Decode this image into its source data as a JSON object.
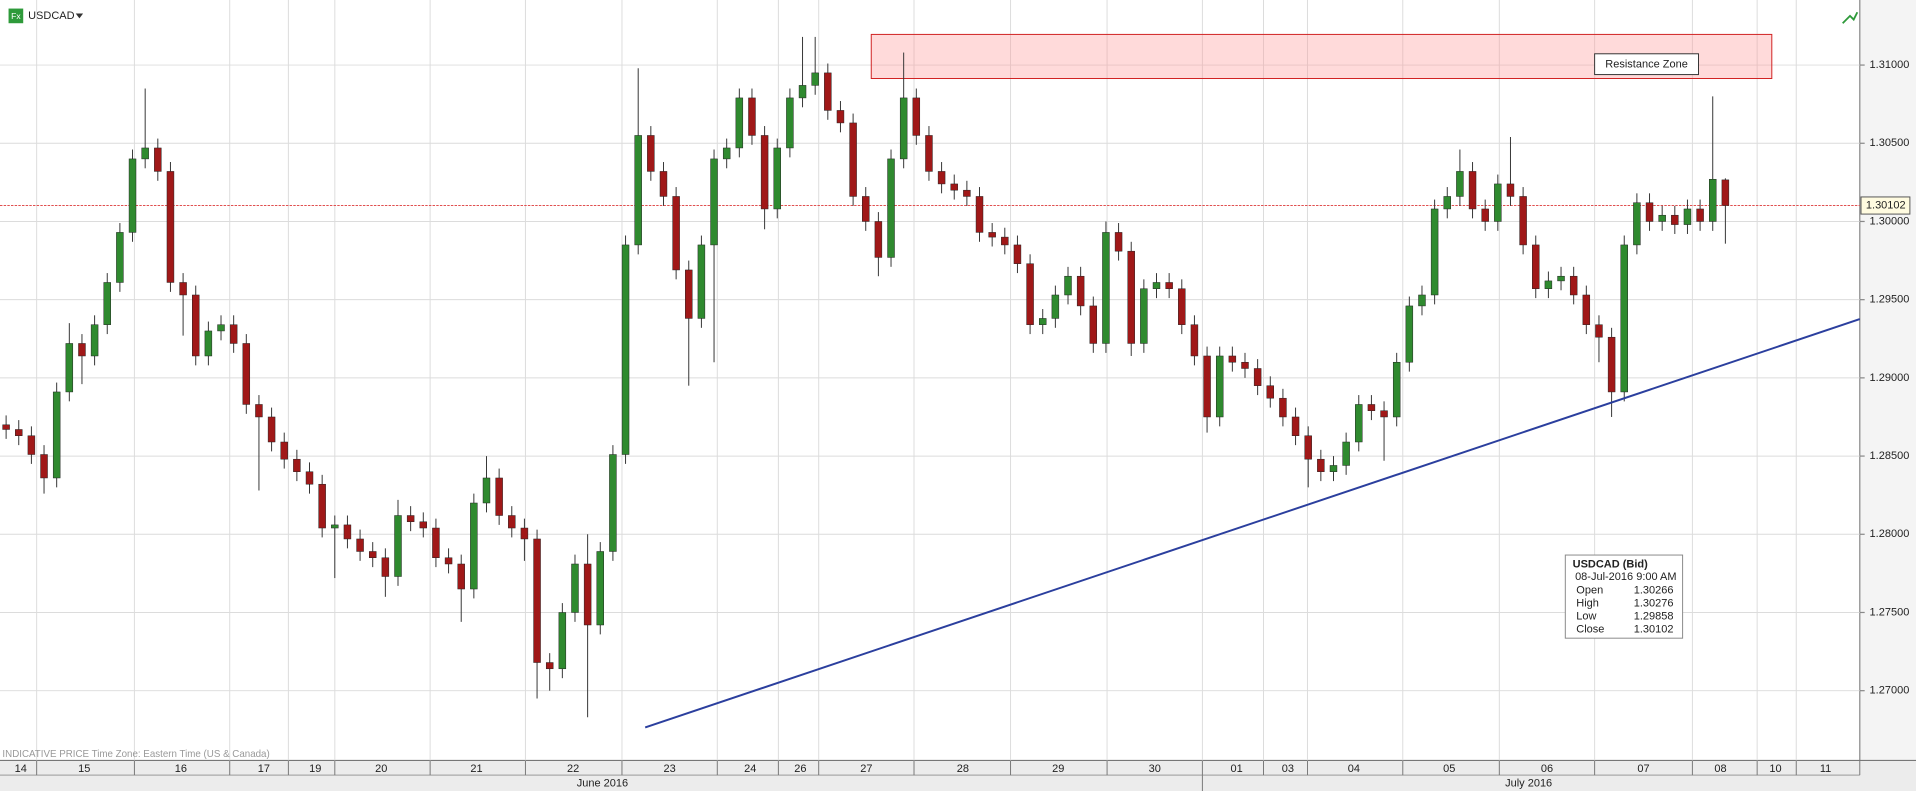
{
  "chart_data": {
    "type": "candlestick",
    "symbol": "USDCAD",
    "icon": "Fx",
    "footer_note": "INDICATIVE PRICE   Time Zone: Eastern Time (US & Canada)",
    "up_color": "#2f8a2f",
    "down_color": "#a01818",
    "grid": true,
    "ylim": [
      1.26554,
      1.31416
    ],
    "yticks": [
      {
        "value": 1.27,
        "label": "1.27000"
      },
      {
        "value": 1.275,
        "label": "1.27500"
      },
      {
        "value": 1.28,
        "label": "1.28000"
      },
      {
        "value": 1.285,
        "label": "1.28500"
      },
      {
        "value": 1.29,
        "label": "1.29000"
      },
      {
        "value": 1.295,
        "label": "1.29500"
      },
      {
        "value": 1.3,
        "label": "1.30000"
      },
      {
        "value": 1.305,
        "label": "1.30500"
      },
      {
        "value": 1.31,
        "label": "1.31000"
      }
    ],
    "x_labels": [
      "14",
      "15",
      "16",
      "17",
      "19",
      "20",
      "21",
      "22",
      "23",
      "24",
      "26",
      "27",
      "28",
      "29",
      "30",
      "01",
      "03",
      "04",
      "05",
      "06",
      "07",
      "08",
      "10",
      "11"
    ],
    "months": [
      "June 2016",
      "July 2016"
    ],
    "last_price": 1.30102,
    "trendline": {
      "start": 1.26765,
      "end": 1.29376,
      "color": "#2b3f9e"
    },
    "zone": {
      "label": "Resistance Zone",
      "low": 1.30914,
      "high": 1.31196
    },
    "info": {
      "title": "USDCAD (Bid)",
      "time": "08-Jul-2016 9:00 AM",
      "fields": [
        {
          "name": "Open",
          "value": 1.30266
        },
        {
          "name": "High",
          "value": 1.30276
        },
        {
          "name": "Low",
          "value": 1.29858
        },
        {
          "name": "Close",
          "value": 1.30102
        }
      ]
    },
    "open": [
      1.287,
      1.2867,
      1.2863,
      1.2851,
      1.2836,
      1.2891,
      1.2922,
      1.2914,
      1.2934,
      1.2961,
      1.2993,
      1.304,
      1.3047,
      1.3032,
      1.2961,
      1.2953,
      1.2914,
      1.293,
      1.2934,
      1.2922,
      1.2883,
      1.2875,
      1.2859,
      1.2848,
      1.284,
      1.2832,
      1.2804,
      1.2806,
      1.2797,
      1.2789,
      1.2785,
      1.2773,
      1.2812,
      1.2808,
      1.2804,
      1.2785,
      1.2781,
      1.2765,
      1.282,
      1.2836,
      1.2812,
      1.2804,
      1.2797,
      1.2718,
      1.2714,
      1.275,
      1.2781,
      1.2742,
      1.2789,
      1.2851,
      1.2985,
      1.3055,
      1.3032,
      1.3016,
      1.2969,
      1.2938,
      1.2985,
      1.304,
      1.3047,
      1.3079,
      1.3055,
      1.3008,
      1.3047,
      1.3079,
      1.3087,
      1.3095,
      1.3071,
      1.3063,
      1.3016,
      1.3,
      1.2977,
      1.304,
      1.3079,
      1.3055,
      1.3032,
      1.3024,
      1.302,
      1.3016,
      1.2993,
      1.299,
      1.2985,
      1.2973,
      1.2934,
      1.2938,
      1.2953,
      1.2965,
      1.2946,
      1.2922,
      1.2993,
      1.2981,
      1.2922,
      1.2957,
      1.2961,
      1.2957,
      1.2934,
      1.2914,
      1.2875,
      1.2914,
      1.291,
      1.2906,
      1.2895,
      1.2887,
      1.2875,
      1.2863,
      1.2848,
      1.284,
      1.2844,
      1.2859,
      1.2883,
      1.2879,
      1.2875,
      1.291,
      1.2946,
      1.2953,
      1.3008,
      1.3016,
      1.3032,
      1.3008,
      1.3,
      1.3024,
      1.3016,
      1.2985,
      1.2957,
      1.2962,
      1.2965,
      1.2953,
      1.2934,
      1.2926,
      1.2891,
      1.2985,
      1.3012,
      1.3,
      1.3004,
      1.2998,
      1.3008,
      1.3,
      1.30266
    ],
    "high": [
      1.2876,
      1.2873,
      1.2869,
      1.2857,
      1.2897,
      1.2935,
      1.2928,
      1.294,
      1.2967,
      1.2999,
      1.3046,
      1.3085,
      1.3053,
      1.3038,
      1.2967,
      1.2959,
      1.2936,
      1.294,
      1.294,
      1.2928,
      1.2889,
      1.2881,
      1.2865,
      1.2854,
      1.2846,
      1.2838,
      1.2812,
      1.2812,
      1.2803,
      1.2795,
      1.2791,
      1.2822,
      1.2818,
      1.2814,
      1.281,
      1.2791,
      1.2787,
      1.2826,
      1.285,
      1.2842,
      1.2818,
      1.281,
      1.2803,
      1.2724,
      1.2756,
      1.2787,
      1.28,
      1.2795,
      1.2857,
      1.2991,
      1.3098,
      1.3061,
      1.3038,
      1.3022,
      1.2975,
      1.2991,
      1.3046,
      1.3053,
      1.3085,
      1.3085,
      1.3061,
      1.3053,
      1.3085,
      1.3118,
      1.3118,
      1.3101,
      1.3077,
      1.3069,
      1.3022,
      1.3006,
      1.3046,
      1.3108,
      1.3085,
      1.3061,
      1.3038,
      1.303,
      1.3026,
      1.3022,
      1.2999,
      1.2996,
      1.2991,
      1.2979,
      1.2944,
      1.2959,
      1.2971,
      1.2971,
      1.2952,
      1.3,
      1.2999,
      1.2987,
      1.2963,
      1.2967,
      1.2967,
      1.2963,
      1.294,
      1.292,
      1.292,
      1.292,
      1.2916,
      1.2912,
      1.2901,
      1.2893,
      1.2881,
      1.2869,
      1.2854,
      1.285,
      1.2865,
      1.2889,
      1.2889,
      1.2885,
      1.2916,
      1.2952,
      1.2959,
      1.3014,
      1.3022,
      1.3046,
      1.3038,
      1.3014,
      1.303,
      1.3054,
      1.3022,
      1.2991,
      1.2968,
      1.2971,
      1.2971,
      1.2959,
      1.294,
      1.2932,
      1.2991,
      1.3018,
      1.3018,
      1.301,
      1.301,
      1.3014,
      1.3014,
      1.308,
      1.30276
    ],
    "low": [
      1.2861,
      1.2857,
      1.2845,
      1.2826,
      1.283,
      1.2885,
      1.2896,
      1.2908,
      1.2928,
      1.2955,
      1.2987,
      1.3034,
      1.3026,
      1.2955,
      1.2927,
      1.2908,
      1.2908,
      1.2924,
      1.2916,
      1.2877,
      1.2828,
      1.2853,
      1.2842,
      1.2834,
      1.2826,
      1.2798,
      1.2772,
      1.2791,
      1.2783,
      1.2779,
      1.276,
      1.2767,
      1.2802,
      1.2798,
      1.2779,
      1.2775,
      1.2744,
      1.2759,
      1.2814,
      1.2806,
      1.2798,
      1.2783,
      1.2695,
      1.27,
      1.2708,
      1.2744,
      1.2683,
      1.2736,
      1.2783,
      1.2845,
      1.2979,
      1.3026,
      1.301,
      1.2963,
      1.2895,
      1.2932,
      1.291,
      1.3034,
      1.3041,
      1.3049,
      1.2995,
      1.3002,
      1.3041,
      1.3073,
      1.3081,
      1.3065,
      1.3057,
      1.301,
      1.2994,
      1.2965,
      1.2971,
      1.3034,
      1.3049,
      1.3026,
      1.3018,
      1.3014,
      1.301,
      1.2987,
      1.2984,
      1.2979,
      1.2967,
      1.2928,
      1.2928,
      1.2932,
      1.2947,
      1.294,
      1.2916,
      1.2916,
      1.2975,
      1.2914,
      1.2916,
      1.2951,
      1.2951,
      1.2928,
      1.2908,
      1.2865,
      1.2869,
      1.2904,
      1.29,
      1.2889,
      1.2881,
      1.2869,
      1.2857,
      1.283,
      1.2834,
      1.2834,
      1.2838,
      1.2853,
      1.2873,
      1.2847,
      1.2869,
      1.2904,
      1.294,
      1.2947,
      1.3002,
      1.301,
      1.3002,
      1.2994,
      1.2994,
      1.301,
      1.2979,
      1.2951,
      1.2951,
      1.2956,
      1.2947,
      1.2928,
      1.291,
      1.2875,
      1.2885,
      1.2979,
      1.2994,
      1.2994,
      1.2992,
      1.2992,
      1.2994,
      1.2994,
      1.29858
    ],
    "close": [
      1.2867,
      1.2863,
      1.2851,
      1.2836,
      1.2891,
      1.2922,
      1.2914,
      1.2934,
      1.2961,
      1.2993,
      1.304,
      1.3047,
      1.3032,
      1.2961,
      1.2953,
      1.2914,
      1.293,
      1.2934,
      1.2922,
      1.2883,
      1.2875,
      1.2859,
      1.2848,
      1.284,
      1.2832,
      1.2804,
      1.2806,
      1.2797,
      1.2789,
      1.2785,
      1.2773,
      1.2812,
      1.2808,
      1.2804,
      1.2785,
      1.2781,
      1.2765,
      1.282,
      1.2836,
      1.2812,
      1.2804,
      1.2797,
      1.2718,
      1.2714,
      1.275,
      1.2781,
      1.2742,
      1.2789,
      1.2851,
      1.2985,
      1.3055,
      1.3032,
      1.3016,
      1.2969,
      1.2938,
      1.2985,
      1.304,
      1.3047,
      1.3079,
      1.3055,
      1.3008,
      1.3047,
      1.3079,
      1.3087,
      1.3095,
      1.3071,
      1.3063,
      1.3016,
      1.3,
      1.2977,
      1.304,
      1.3079,
      1.3055,
      1.3032,
      1.3024,
      1.302,
      1.3016,
      1.2993,
      1.299,
      1.2985,
      1.2973,
      1.2934,
      1.2938,
      1.2953,
      1.2965,
      1.2946,
      1.2922,
      1.2993,
      1.2981,
      1.2922,
      1.2957,
      1.2961,
      1.2957,
      1.2934,
      1.2914,
      1.2875,
      1.2914,
      1.291,
      1.2906,
      1.2895,
      1.2887,
      1.2875,
      1.2863,
      1.2848,
      1.284,
      1.2844,
      1.2859,
      1.2883,
      1.2879,
      1.2875,
      1.291,
      1.2946,
      1.2953,
      1.3008,
      1.3016,
      1.3032,
      1.3008,
      1.3,
      1.3024,
      1.3016,
      1.2985,
      1.2957,
      1.2962,
      1.2965,
      1.2953,
      1.2934,
      1.2926,
      1.2891,
      1.2985,
      1.3012,
      1.3,
      1.3004,
      1.2998,
      1.3008,
      1.3,
      1.3027,
      1.30102
    ]
  }
}
